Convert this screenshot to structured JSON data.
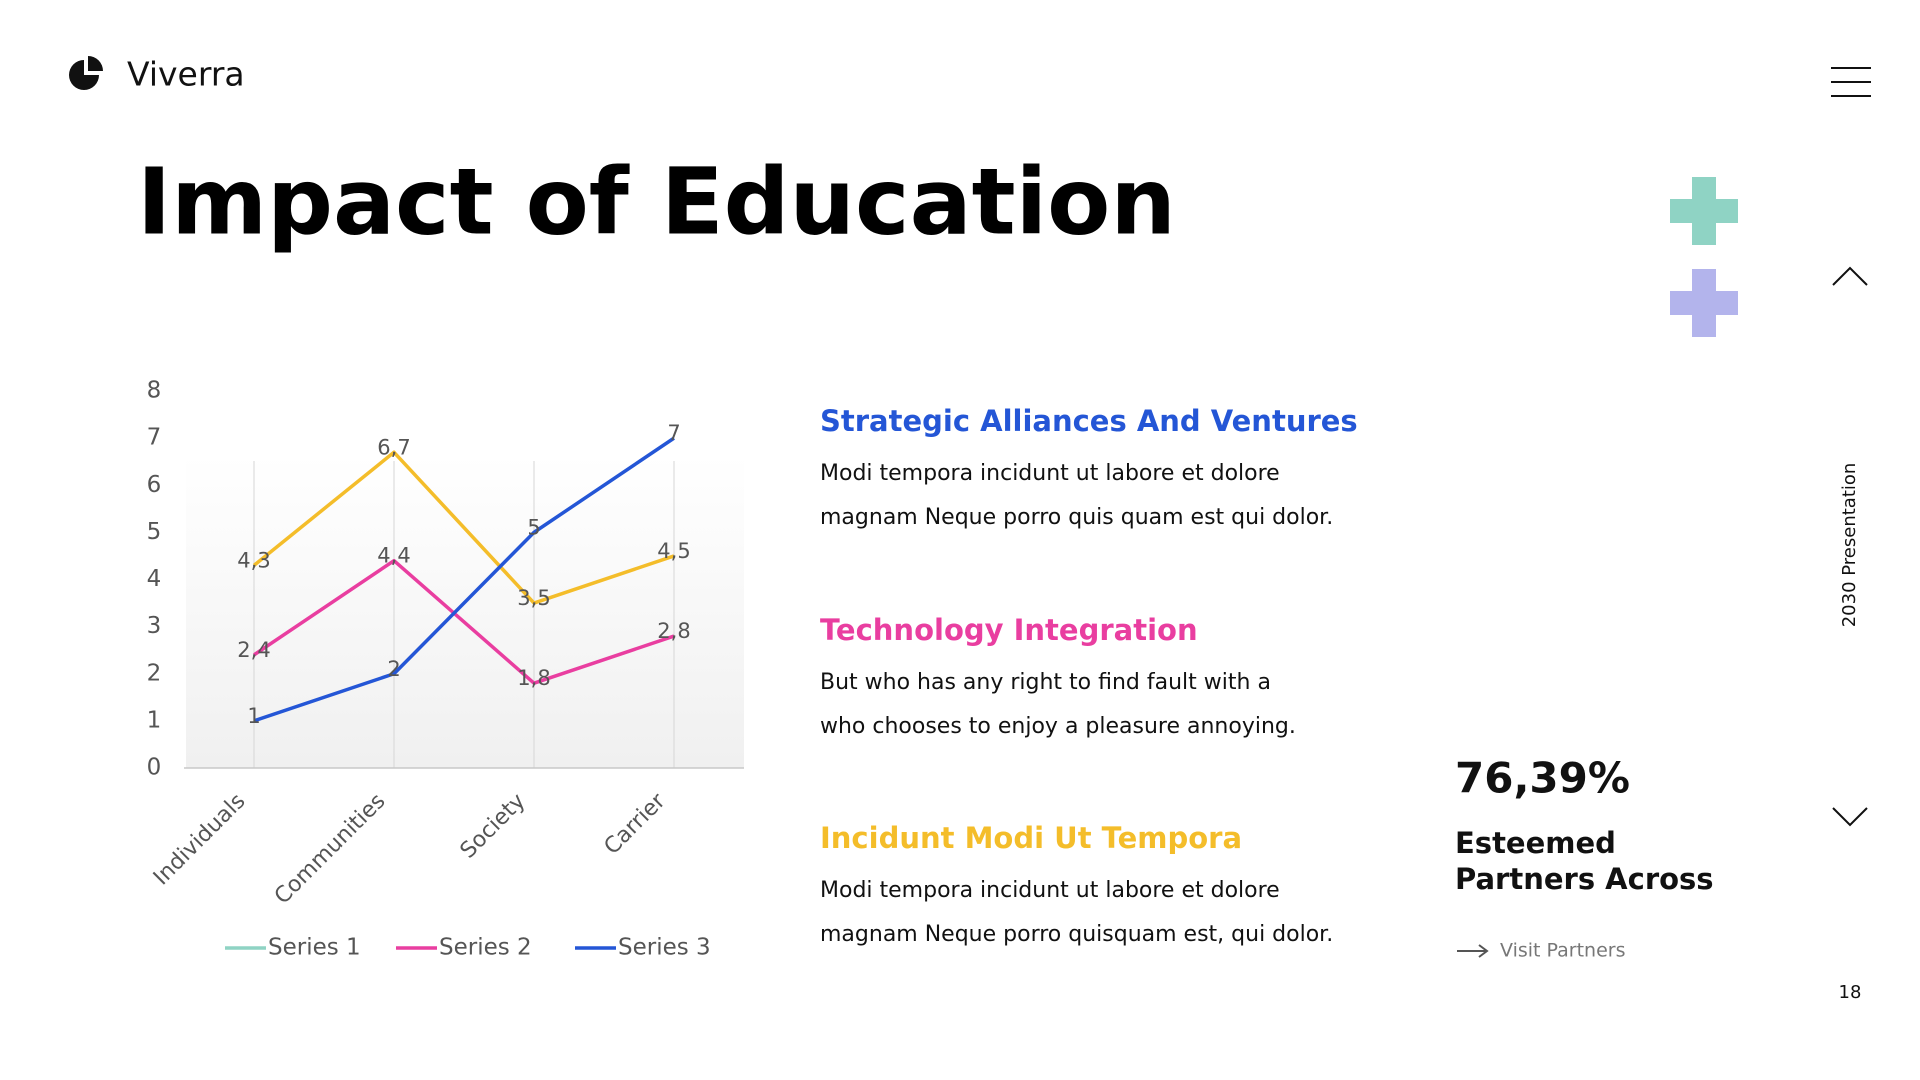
{
  "brand": "Viverra",
  "title": "Impact of Education",
  "side_label": "2030 Presentation",
  "page_number": "18",
  "chart_data": {
    "type": "line",
    "categories": [
      "Individuals",
      "Communities",
      "Society",
      "Carrier"
    ],
    "series": [
      {
        "name": "Series 1",
        "color": "#f4bd2a",
        "legend_color": "#8fd3c4",
        "values": [
          4.3,
          6.7,
          3.5,
          4.5
        ],
        "value_labels": [
          "4,3",
          "6,7",
          "3,5",
          "4,5"
        ]
      },
      {
        "name": "Series 2",
        "color": "#e93ea0",
        "legend_color": "#e93ea0",
        "values": [
          2.4,
          4.4,
          1.8,
          2.8
        ],
        "value_labels": [
          "2,4",
          "4,4",
          "1,8",
          "2,8"
        ]
      },
      {
        "name": "Series 3",
        "color": "#2456d6",
        "legend_color": "#2456d6",
        "values": [
          1,
          2,
          5,
          7
        ],
        "value_labels": [
          "1",
          "2",
          "5",
          "7"
        ]
      }
    ],
    "ylim": [
      0,
      8
    ],
    "yticks": [
      0,
      1,
      2,
      3,
      4,
      5,
      6,
      7,
      8
    ],
    "legend": "bottom"
  },
  "sections": [
    {
      "heading": "Strategic Alliances And Ventures",
      "color": "#2456d6",
      "lines": [
        "Modi tempora incidunt ut labore et dolore",
        "magnam Neque porro quis quam est qui dolor."
      ]
    },
    {
      "heading": "Technology Integration",
      "color": "#e93ea0",
      "lines": [
        "But who has any right to find fault with a",
        "who chooses to enjoy a pleasure annoying."
      ]
    },
    {
      "heading": "Incidunt Modi Ut Tempora",
      "color": "#f4bd2a",
      "lines": [
        "Modi tempora incidunt ut labore et dolore",
        "magnam Neque porro quisquam est, qui dolor."
      ]
    }
  ],
  "stat": {
    "value": "76,39%",
    "lines": [
      "Esteemed",
      "Partners Across"
    ],
    "link": "Visit Partners"
  }
}
